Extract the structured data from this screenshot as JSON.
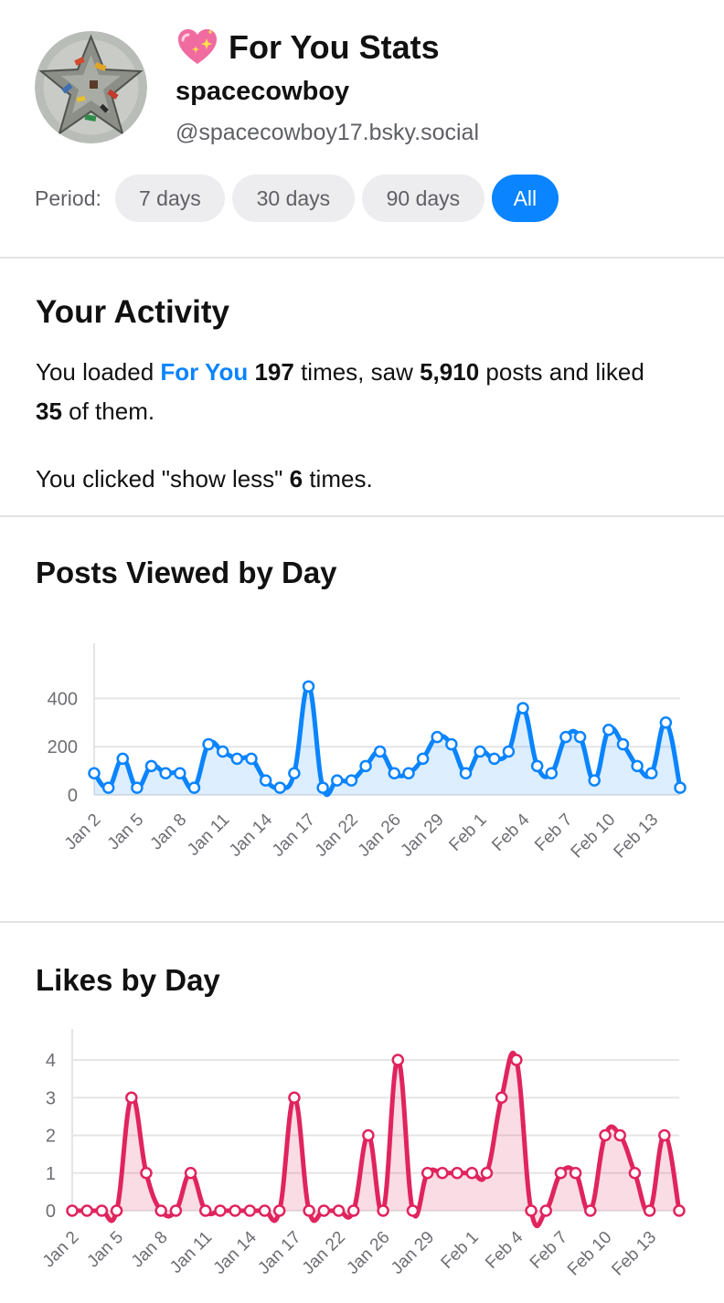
{
  "header": {
    "title_emoji": "heart-sparkle-icon",
    "title": "For You Stats",
    "display_name": "spacecowboy",
    "handle": "@spacecowboy17.bsky.social",
    "period_label": "Period:",
    "periods": [
      {
        "label": "7 days",
        "active": false
      },
      {
        "label": "30 days",
        "active": false
      },
      {
        "label": "90 days",
        "active": false
      },
      {
        "label": "All",
        "active": true
      }
    ]
  },
  "activity": {
    "heading": "Your Activity",
    "line1_pre": "You loaded ",
    "line1_feed": "For You",
    "loads": "197",
    "line1_mid1": " times, saw ",
    "posts_seen": "5,910",
    "line1_mid2": " posts and liked ",
    "liked": "35",
    "line1_post": " of them.",
    "line2_pre": "You clicked \"show less\" ",
    "show_less": "6",
    "line2_post": " times."
  },
  "colors": {
    "accent": "#0a84ff",
    "likes": "#e0245e",
    "grid": "#e5e5e8",
    "axis_text": "#6e6e73"
  },
  "chart_data": [
    {
      "type": "area",
      "title": "Posts Viewed by Day",
      "xlabel": "",
      "ylabel": "",
      "ylim": [
        0,
        500
      ],
      "yticks": [
        0,
        200,
        400
      ],
      "x_tick_labels": [
        "Jan 2",
        "Jan 5",
        "Jan 8",
        "Jan 11",
        "Jan 14",
        "Jan 17",
        "Jan 22",
        "Jan 26",
        "Jan 29",
        "Feb 1",
        "Feb 4",
        "Feb 7",
        "Feb 10",
        "Feb 13"
      ],
      "values": [
        90,
        30,
        150,
        30,
        120,
        90,
        90,
        30,
        210,
        180,
        150,
        150,
        60,
        30,
        90,
        450,
        30,
        60,
        60,
        120,
        180,
        90,
        90,
        150,
        240,
        210,
        90,
        180,
        150,
        180,
        360,
        120,
        90,
        240,
        240,
        60,
        270,
        210,
        120,
        90,
        300,
        30
      ],
      "color": "#0a84ff",
      "grid": true
    },
    {
      "type": "area",
      "title": "Likes by Day",
      "xlabel": "",
      "ylabel": "",
      "ylim": [
        0,
        4
      ],
      "yticks": [
        0,
        1,
        2,
        3,
        4
      ],
      "x_tick_labels": [
        "Jan 2",
        "Jan 5",
        "Jan 8",
        "Jan 11",
        "Jan 14",
        "Jan 17",
        "Jan 22",
        "Jan 26",
        "Jan 29",
        "Feb 1",
        "Feb 4",
        "Feb 7",
        "Feb 10",
        "Feb 13"
      ],
      "values": [
        0,
        0,
        0,
        0,
        3,
        1,
        0,
        0,
        1,
        0,
        0,
        0,
        0,
        0,
        0,
        3,
        0,
        0,
        0,
        0,
        2,
        0,
        4,
        0,
        1,
        1,
        1,
        1,
        1,
        3,
        4,
        0,
        0,
        1,
        1,
        0,
        2,
        2,
        1,
        0,
        2,
        0
      ],
      "color": "#e0245e",
      "grid": true
    }
  ]
}
